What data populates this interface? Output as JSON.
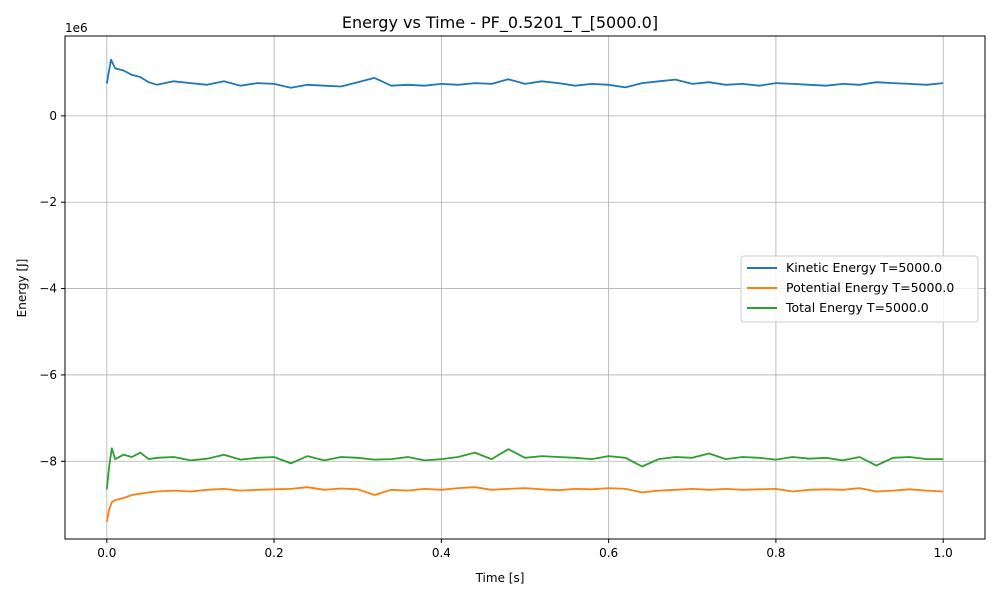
{
  "chart_data": {
    "type": "line",
    "title": "Energy vs Time - PF_0.5201_T_[5000.0]",
    "xlabel": "Time [s]",
    "ylabel": "Energy [J]",
    "y_scale_label": "1e6",
    "xlim": [
      -0.05,
      1.05
    ],
    "ylim": [
      -9.8,
      1.85
    ],
    "x_ticks": [
      0.0,
      0.2,
      0.4,
      0.6,
      0.8,
      1.0
    ],
    "x_tick_labels": [
      "0.0",
      "0.2",
      "0.4",
      "0.6",
      "0.8",
      "1.0"
    ],
    "y_ticks": [
      -8,
      -6,
      -4,
      -2,
      0
    ],
    "y_tick_labels": [
      "−8",
      "−6",
      "−4",
      "−2",
      "0"
    ],
    "grid": true,
    "legend_position": "center-right",
    "series": [
      {
        "name": "Kinetic Energy T=5000.0",
        "color": "#1f77b4",
        "x": [
          0,
          0.005,
          0.01,
          0.02,
          0.03,
          0.04,
          0.05,
          0.06,
          0.08,
          0.1,
          0.12,
          0.14,
          0.16,
          0.18,
          0.2,
          0.22,
          0.24,
          0.26,
          0.28,
          0.3,
          0.32,
          0.34,
          0.36,
          0.38,
          0.4,
          0.42,
          0.44,
          0.46,
          0.48,
          0.5,
          0.52,
          0.54,
          0.56,
          0.58,
          0.6,
          0.62,
          0.64,
          0.66,
          0.68,
          0.7,
          0.72,
          0.74,
          0.76,
          0.78,
          0.8,
          0.82,
          0.84,
          0.86,
          0.88,
          0.9,
          0.92,
          0.94,
          0.96,
          0.98,
          1.0
        ],
        "y": [
          0.75,
          1.3,
          1.1,
          1.05,
          0.95,
          0.9,
          0.78,
          0.72,
          0.8,
          0.76,
          0.72,
          0.8,
          0.7,
          0.76,
          0.74,
          0.65,
          0.72,
          0.7,
          0.68,
          0.78,
          0.88,
          0.7,
          0.72,
          0.7,
          0.74,
          0.72,
          0.76,
          0.74,
          0.85,
          0.74,
          0.8,
          0.76,
          0.7,
          0.74,
          0.72,
          0.66,
          0.76,
          0.8,
          0.84,
          0.74,
          0.78,
          0.72,
          0.74,
          0.7,
          0.76,
          0.74,
          0.72,
          0.7,
          0.74,
          0.72,
          0.78,
          0.76,
          0.74,
          0.72,
          0.76
        ]
      },
      {
        "name": "Potential Energy T=5000.0",
        "color": "#ff7f0e",
        "x": [
          0,
          0.003,
          0.006,
          0.01,
          0.02,
          0.03,
          0.04,
          0.05,
          0.06,
          0.08,
          0.1,
          0.12,
          0.14,
          0.16,
          0.18,
          0.2,
          0.22,
          0.24,
          0.26,
          0.28,
          0.3,
          0.32,
          0.34,
          0.36,
          0.38,
          0.4,
          0.42,
          0.44,
          0.46,
          0.48,
          0.5,
          0.52,
          0.54,
          0.56,
          0.58,
          0.6,
          0.62,
          0.64,
          0.66,
          0.68,
          0.7,
          0.72,
          0.74,
          0.76,
          0.78,
          0.8,
          0.82,
          0.84,
          0.86,
          0.88,
          0.9,
          0.92,
          0.94,
          0.96,
          0.98,
          1.0
        ],
        "y": [
          -9.4,
          -9.1,
          -8.95,
          -8.9,
          -8.85,
          -8.78,
          -8.75,
          -8.72,
          -8.7,
          -8.68,
          -8.7,
          -8.66,
          -8.64,
          -8.68,
          -8.66,
          -8.65,
          -8.64,
          -8.6,
          -8.66,
          -8.63,
          -8.65,
          -8.78,
          -8.66,
          -8.68,
          -8.64,
          -8.66,
          -8.62,
          -8.6,
          -8.66,
          -8.64,
          -8.62,
          -8.65,
          -8.67,
          -8.64,
          -8.65,
          -8.62,
          -8.64,
          -8.72,
          -8.68,
          -8.66,
          -8.64,
          -8.66,
          -8.64,
          -8.66,
          -8.65,
          -8.64,
          -8.7,
          -8.66,
          -8.65,
          -8.66,
          -8.62,
          -8.7,
          -8.68,
          -8.65,
          -8.68,
          -8.7
        ]
      },
      {
        "name": "Total Energy T=5000.0",
        "color": "#2ca02c",
        "x": [
          0,
          0.003,
          0.006,
          0.01,
          0.02,
          0.03,
          0.04,
          0.05,
          0.06,
          0.08,
          0.1,
          0.12,
          0.14,
          0.16,
          0.18,
          0.2,
          0.22,
          0.24,
          0.26,
          0.28,
          0.3,
          0.32,
          0.34,
          0.36,
          0.38,
          0.4,
          0.42,
          0.44,
          0.46,
          0.48,
          0.5,
          0.52,
          0.54,
          0.56,
          0.58,
          0.6,
          0.62,
          0.64,
          0.66,
          0.68,
          0.7,
          0.72,
          0.74,
          0.76,
          0.78,
          0.8,
          0.82,
          0.84,
          0.86,
          0.88,
          0.9,
          0.92,
          0.94,
          0.96,
          0.98,
          1.0
        ],
        "y": [
          -8.65,
          -8.1,
          -7.7,
          -7.95,
          -7.85,
          -7.9,
          -7.8,
          -7.95,
          -7.92,
          -7.9,
          -7.98,
          -7.94,
          -7.85,
          -7.96,
          -7.92,
          -7.9,
          -8.05,
          -7.88,
          -7.98,
          -7.9,
          -7.92,
          -7.96,
          -7.95,
          -7.9,
          -7.98,
          -7.95,
          -7.9,
          -7.8,
          -7.95,
          -7.72,
          -7.92,
          -7.88,
          -7.9,
          -7.92,
          -7.95,
          -7.88,
          -7.92,
          -8.12,
          -7.95,
          -7.9,
          -7.92,
          -7.82,
          -7.95,
          -7.9,
          -7.92,
          -7.96,
          -7.9,
          -7.94,
          -7.92,
          -7.98,
          -7.9,
          -8.1,
          -7.92,
          -7.9,
          -7.95,
          -7.95
        ]
      }
    ]
  }
}
